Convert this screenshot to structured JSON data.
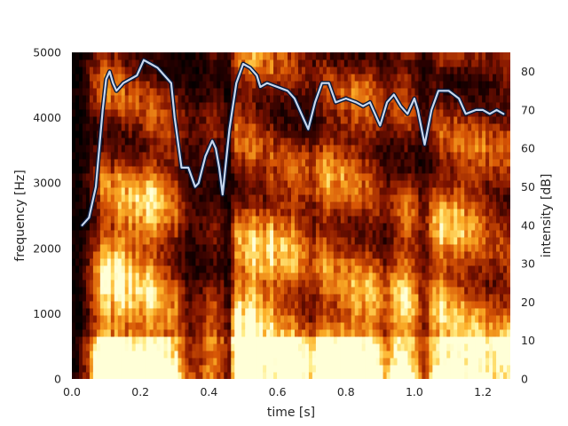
{
  "chart_data": {
    "type": "heatmap",
    "title": "",
    "xlabel": "time [s]",
    "ylabel": "frequency [Hz]",
    "y2label": "intensity [dB]",
    "xlim": [
      0.0,
      1.28
    ],
    "ylim": [
      0,
      5000
    ],
    "y2lim": [
      0,
      85
    ],
    "x_ticks": [
      "0.0",
      "0.2",
      "0.4",
      "0.6",
      "0.8",
      "1.0",
      "1.2"
    ],
    "y_ticks": [
      "0",
      "1000",
      "2000",
      "3000",
      "4000",
      "5000"
    ],
    "y2_ticks": [
      "0",
      "10",
      "20",
      "30",
      "40",
      "50",
      "60",
      "70",
      "80"
    ],
    "grid": false,
    "colormap": "afmhot",
    "spectrogram_energy": [
      [
        0.0,
        0.05
      ],
      [
        0.02,
        0.1
      ],
      [
        0.05,
        0.35
      ],
      [
        0.08,
        0.9
      ],
      [
        0.1,
        1.0
      ],
      [
        0.2,
        1.0
      ],
      [
        0.28,
        0.95
      ],
      [
        0.32,
        0.5
      ],
      [
        0.36,
        0.3
      ],
      [
        0.4,
        0.55
      ],
      [
        0.44,
        0.4
      ],
      [
        0.46,
        0.25
      ],
      [
        0.48,
        0.9
      ],
      [
        0.5,
        1.0
      ],
      [
        0.58,
        0.95
      ],
      [
        0.66,
        0.85
      ],
      [
        0.7,
        0.6
      ],
      [
        0.72,
        0.95
      ],
      [
        0.8,
        0.9
      ],
      [
        0.88,
        0.8
      ],
      [
        0.92,
        0.55
      ],
      [
        0.96,
        0.85
      ],
      [
        1.0,
        0.75
      ],
      [
        1.03,
        0.4
      ],
      [
        1.06,
        0.9
      ],
      [
        1.1,
        1.0
      ],
      [
        1.16,
        0.9
      ],
      [
        1.22,
        0.7
      ],
      [
        1.28,
        0.65
      ]
    ],
    "series": [
      {
        "type": "line",
        "axis": "y2",
        "color": "#c8d8f0",
        "outline_color": "#0a1a3a",
        "points": [
          [
            0.03,
            40
          ],
          [
            0.05,
            42
          ],
          [
            0.07,
            50
          ],
          [
            0.09,
            70
          ],
          [
            0.1,
            78
          ],
          [
            0.11,
            80
          ],
          [
            0.12,
            77
          ],
          [
            0.13,
            75
          ],
          [
            0.15,
            77
          ],
          [
            0.17,
            78
          ],
          [
            0.19,
            79
          ],
          [
            0.21,
            83
          ],
          [
            0.23,
            82
          ],
          [
            0.25,
            81
          ],
          [
            0.27,
            79
          ],
          [
            0.29,
            77
          ],
          [
            0.3,
            68
          ],
          [
            0.32,
            55
          ],
          [
            0.34,
            55
          ],
          [
            0.36,
            50
          ],
          [
            0.37,
            51
          ],
          [
            0.39,
            58
          ],
          [
            0.41,
            62
          ],
          [
            0.42,
            60
          ],
          [
            0.43,
            55
          ],
          [
            0.44,
            48
          ],
          [
            0.46,
            65
          ],
          [
            0.48,
            77
          ],
          [
            0.5,
            82
          ],
          [
            0.52,
            81
          ],
          [
            0.54,
            79
          ],
          [
            0.55,
            76
          ],
          [
            0.57,
            77
          ],
          [
            0.6,
            76
          ],
          [
            0.63,
            75
          ],
          [
            0.65,
            73
          ],
          [
            0.67,
            69
          ],
          [
            0.69,
            65
          ],
          [
            0.71,
            72
          ],
          [
            0.73,
            77
          ],
          [
            0.75,
            77
          ],
          [
            0.77,
            72
          ],
          [
            0.8,
            73
          ],
          [
            0.83,
            72
          ],
          [
            0.85,
            71
          ],
          [
            0.87,
            72
          ],
          [
            0.9,
            66
          ],
          [
            0.92,
            72
          ],
          [
            0.94,
            74
          ],
          [
            0.96,
            71
          ],
          [
            0.98,
            69
          ],
          [
            1.0,
            73
          ],
          [
            1.01,
            70
          ],
          [
            1.03,
            61
          ],
          [
            1.05,
            70
          ],
          [
            1.07,
            75
          ],
          [
            1.1,
            75
          ],
          [
            1.13,
            73
          ],
          [
            1.15,
            69
          ],
          [
            1.18,
            70
          ],
          [
            1.2,
            70
          ],
          [
            1.22,
            69
          ],
          [
            1.24,
            70
          ],
          [
            1.26,
            69
          ]
        ]
      }
    ]
  }
}
